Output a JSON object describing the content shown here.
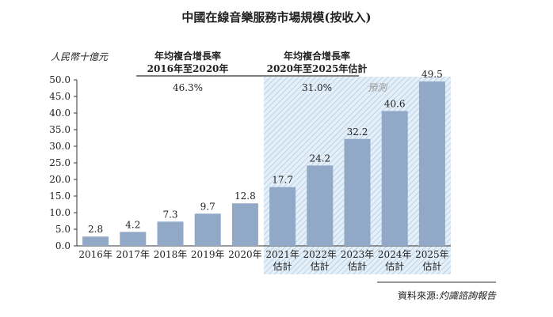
{
  "chart_data": {
    "type": "bar",
    "title": "中國在線音樂服務市場規模(按收入)",
    "ylabel": "人民幣十億元",
    "xlabel": "",
    "ylim": [
      0,
      50
    ],
    "yticks": [
      "0.0",
      "5.0",
      "10.0",
      "15.0",
      "20.0",
      "25.0",
      "30.0",
      "35.0",
      "40.0",
      "45.0",
      "50.0"
    ],
    "categories": [
      [
        "2016年"
      ],
      [
        "2017年"
      ],
      [
        "2018年"
      ],
      [
        "2019年"
      ],
      [
        "2020年"
      ],
      [
        "2021年",
        "估計"
      ],
      [
        "2022年",
        "估計"
      ],
      [
        "2023年",
        "估計"
      ],
      [
        "2024年",
        "估計"
      ],
      [
        "2025年",
        "估計"
      ]
    ],
    "values": [
      2.8,
      4.2,
      7.3,
      9.7,
      12.8,
      17.7,
      24.2,
      32.2,
      40.6,
      49.5
    ],
    "value_labels": [
      "2.8",
      "4.2",
      "7.3",
      "9.7",
      "12.8",
      "17.7",
      "24.2",
      "32.2",
      "40.6",
      "49.5"
    ],
    "bar_color": "#91a8c6",
    "forecast_label": "預測",
    "forecast_start_index": 5,
    "cagr": [
      {
        "heading": "年均複合增長率",
        "period": "2016年至2020年",
        "value": "46.3%"
      },
      {
        "heading": "年均複合增長率",
        "period": "2020年至2025年估計",
        "value": "31.0%"
      }
    ],
    "source": {
      "label": "資料來源:",
      "name": "灼識諮詢報告"
    },
    "grid": false
  }
}
